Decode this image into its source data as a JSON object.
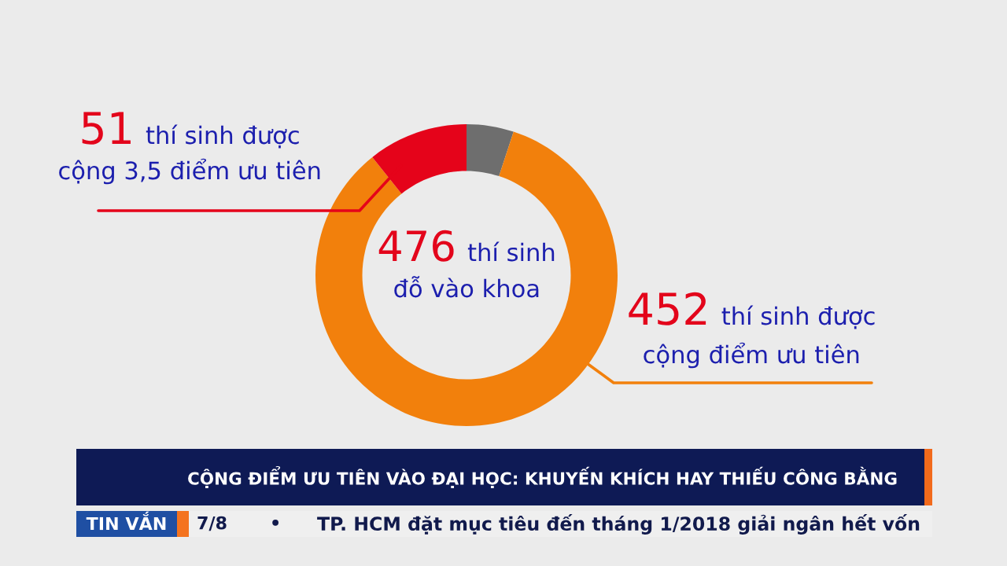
{
  "chart_data": {
    "type": "donut",
    "title": "CỘNG ĐIỂM ƯU TIÊN VÀO ĐẠI HỌC: KHUYẾN KHÍCH HAY THIẾU CÔNG BẰNG",
    "categories": [
      null,
      "452 thí sinh được\ncộng điểm ưu tiên",
      "51 thí sinh được\ncộng 3,5 điểm ưu tiên"
    ],
    "values": [
      24,
      401,
      51
    ],
    "colors": [
      "#6e6e6e",
      "#f2800c",
      "#e5031a"
    ],
    "annotations": [
      "476 thí sinh\nđỗ vào khoa",
      "TIN VẮN",
      "7/8",
      "•",
      "TP. HCM đặt mục tiêu đến tháng 1/2018 giải ngân hết vốn"
    ]
  }
}
